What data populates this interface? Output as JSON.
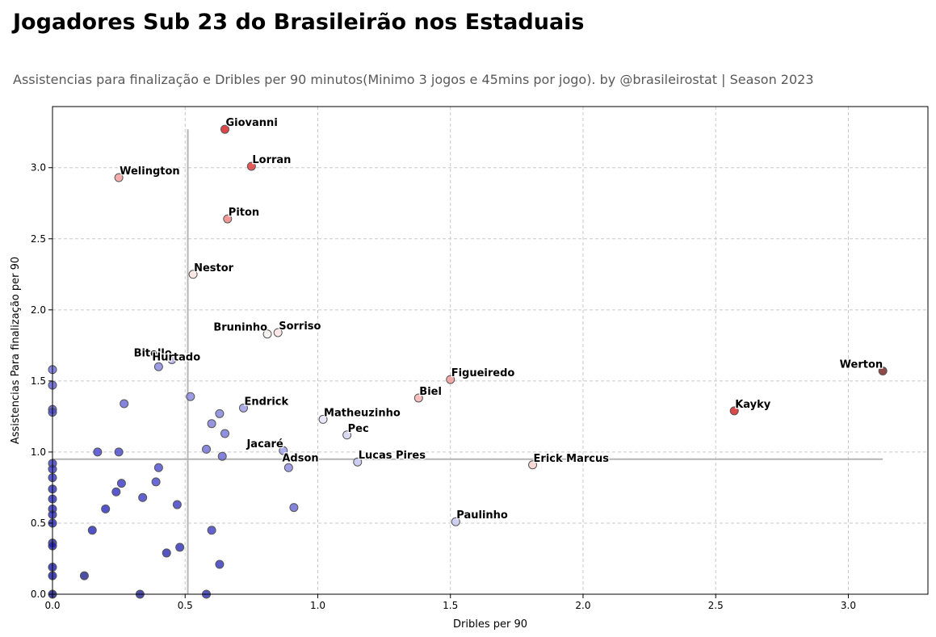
{
  "title": "Jogadores Sub 23 do Brasileirão nos Estaduais",
  "subtitle": "Assistencias para finalização e Dribles per 90 minutos(Minimo 3 jogos e 45mins por jogo). by @brasileirostat | Season 2023",
  "chart_data": {
    "type": "scatter",
    "xlabel": "Dribles per 90",
    "ylabel": "Assistencias Para finalização per 90",
    "xlim": [
      0,
      3.3
    ],
    "ylim": [
      0,
      3.43
    ],
    "xticks": [
      "0.0",
      "0.5",
      "1.0",
      "1.5",
      "2.0",
      "2.5",
      "3.0"
    ],
    "yticks": [
      "0.0",
      "0.5",
      "1.0",
      "1.5",
      "2.0",
      "2.5",
      "3.0"
    ],
    "grid": true,
    "reference_lines": {
      "x_mean": 0.51,
      "y_mean": 0.95,
      "x_extent": [
        0,
        3.13
      ],
      "y_extent": [
        0,
        3.27
      ]
    },
    "labeled_points": [
      {
        "name": "Giovanni",
        "x": 0.65,
        "y": 3.27,
        "color": "#d62728"
      },
      {
        "name": "Lorran",
        "x": 0.75,
        "y": 3.01,
        "color": "#df3b3b"
      },
      {
        "name": "Welington",
        "x": 0.25,
        "y": 2.93,
        "color": "#f2a0a0"
      },
      {
        "name": "Piton",
        "x": 0.66,
        "y": 2.64,
        "color": "#ec8686"
      },
      {
        "name": "Nestor",
        "x": 0.53,
        "y": 2.25,
        "color": "#fbe3e0"
      },
      {
        "name": "Bruninho",
        "x": 0.81,
        "y": 1.83,
        "color": "#f5f0f0"
      },
      {
        "name": "Sorriso",
        "x": 0.85,
        "y": 1.84,
        "color": "#fbe4e2"
      },
      {
        "name": "Bitello",
        "x": 0.45,
        "y": 1.65,
        "color": "#a8a8e8"
      },
      {
        "name": "Hurtado",
        "x": 0.4,
        "y": 1.6,
        "color": "#8c8ce0"
      },
      {
        "name": "Werton",
        "x": 3.13,
        "y": 1.57,
        "color": "#7a2a2a"
      },
      {
        "name": "Figueiredo",
        "x": 1.5,
        "y": 1.51,
        "color": "#f09a9a"
      },
      {
        "name": "Biel",
        "x": 1.38,
        "y": 1.38,
        "color": "#f5b3b0"
      },
      {
        "name": "Endrick",
        "x": 0.72,
        "y": 1.31,
        "color": "#9c9ce6"
      },
      {
        "name": "Kayky",
        "x": 2.57,
        "y": 1.29,
        "color": "#d62728"
      },
      {
        "name": "Matheuzinho",
        "x": 1.02,
        "y": 1.23,
        "color": "#e3e3f6"
      },
      {
        "name": "Pec",
        "x": 1.11,
        "y": 1.12,
        "color": "#d4d4f2"
      },
      {
        "name": "Jacaré",
        "x": 0.87,
        "y": 1.01,
        "color": "#a0a0e8"
      },
      {
        "name": "Adson",
        "x": 0.89,
        "y": 0.89,
        "color": "#8e8ee2"
      },
      {
        "name": "Lucas Pires",
        "x": 1.15,
        "y": 0.93,
        "color": "#c4c4ee"
      },
      {
        "name": "Erick Marcus",
        "x": 1.81,
        "y": 0.91,
        "color": "#f8d0cc"
      },
      {
        "name": "Paulinho",
        "x": 1.52,
        "y": 0.51,
        "color": "#c8c8f0"
      }
    ],
    "unlabeled_points": [
      {
        "x": 0.0,
        "y": 1.58,
        "color": "#6a6ad8"
      },
      {
        "x": 0.0,
        "y": 1.47,
        "color": "#5a5ad4"
      },
      {
        "x": 0.0,
        "y": 1.3,
        "color": "#5050d0"
      },
      {
        "x": 0.0,
        "y": 1.28,
        "color": "#4a4acc"
      },
      {
        "x": 0.0,
        "y": 0.92,
        "color": "#3a3ac8"
      },
      {
        "x": 0.0,
        "y": 0.88,
        "color": "#3636c6"
      },
      {
        "x": 0.0,
        "y": 0.82,
        "color": "#3232c4"
      },
      {
        "x": 0.0,
        "y": 0.74,
        "color": "#2e2ec2"
      },
      {
        "x": 0.0,
        "y": 0.67,
        "color": "#2a2ac0"
      },
      {
        "x": 0.0,
        "y": 0.6,
        "color": "#2828be"
      },
      {
        "x": 0.0,
        "y": 0.56,
        "color": "#2626bc"
      },
      {
        "x": 0.0,
        "y": 0.5,
        "color": "#2424ba"
      },
      {
        "x": 0.0,
        "y": 0.36,
        "color": "#2020b6"
      },
      {
        "x": 0.0,
        "y": 0.34,
        "color": "#1e1eb4"
      },
      {
        "x": 0.0,
        "y": 0.19,
        "color": "#1a1aae"
      },
      {
        "x": 0.0,
        "y": 0.13,
        "color": "#1818aa"
      },
      {
        "x": 0.0,
        "y": 0.0,
        "color": "#141490"
      },
      {
        "x": 0.27,
        "y": 1.34,
        "color": "#6666d8"
      },
      {
        "x": 0.17,
        "y": 1.0,
        "color": "#4040cc"
      },
      {
        "x": 0.25,
        "y": 1.0,
        "color": "#4444cc"
      },
      {
        "x": 0.26,
        "y": 0.78,
        "color": "#3434c4"
      },
      {
        "x": 0.24,
        "y": 0.72,
        "color": "#3030c2"
      },
      {
        "x": 0.2,
        "y": 0.6,
        "color": "#2a2abe"
      },
      {
        "x": 0.15,
        "y": 0.45,
        "color": "#2626ba"
      },
      {
        "x": 0.12,
        "y": 0.13,
        "color": "#202090"
      },
      {
        "x": 0.33,
        "y": 0.0,
        "color": "#202098"
      },
      {
        "x": 0.34,
        "y": 0.68,
        "color": "#3a3ac6"
      },
      {
        "x": 0.4,
        "y": 0.89,
        "color": "#4a4ad0"
      },
      {
        "x": 0.39,
        "y": 0.79,
        "color": "#4242cc"
      },
      {
        "x": 0.47,
        "y": 0.63,
        "color": "#3838c6"
      },
      {
        "x": 0.43,
        "y": 0.29,
        "color": "#2a2ab4"
      },
      {
        "x": 0.48,
        "y": 0.33,
        "color": "#2c2cb8"
      },
      {
        "x": 0.52,
        "y": 1.39,
        "color": "#8484dc"
      },
      {
        "x": 0.63,
        "y": 1.27,
        "color": "#8080dc"
      },
      {
        "x": 0.6,
        "y": 1.2,
        "color": "#7a7ada"
      },
      {
        "x": 0.65,
        "y": 1.13,
        "color": "#7474d8"
      },
      {
        "x": 0.58,
        "y": 1.02,
        "color": "#6a6ad4"
      },
      {
        "x": 0.64,
        "y": 0.97,
        "color": "#6464d2"
      },
      {
        "x": 0.6,
        "y": 0.45,
        "color": "#3c3cc4"
      },
      {
        "x": 0.63,
        "y": 0.21,
        "color": "#3030bc"
      },
      {
        "x": 0.58,
        "y": 0.0,
        "color": "#2a2ab0"
      },
      {
        "x": 0.91,
        "y": 0.61,
        "color": "#6464d2"
      }
    ]
  }
}
